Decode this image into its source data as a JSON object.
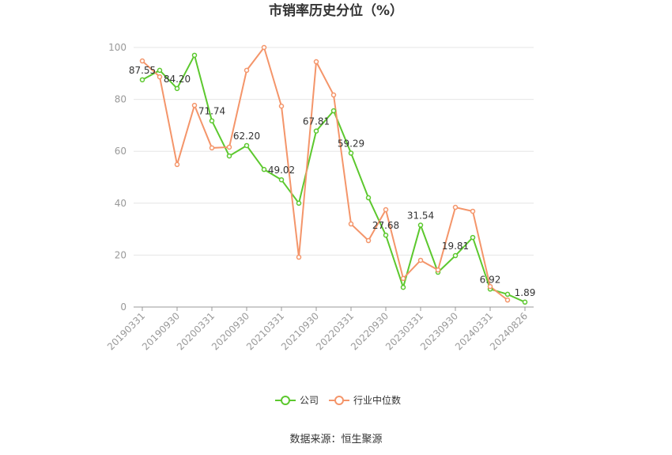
{
  "chart_data": {
    "type": "line",
    "title": "市销率历史分位（%）",
    "categories": [
      "20190331",
      null,
      "20190930",
      null,
      "20200331",
      null,
      "20200930",
      null,
      "20210331",
      null,
      "20210930",
      null,
      "20220331",
      null,
      "20220930",
      null,
      "20230331",
      null,
      "20230930",
      null,
      "20240331",
      null,
      "20240826"
    ],
    "series": [
      {
        "name": "公司",
        "color": "#5cc82e",
        "values": [
          87.55,
          91.2,
          84.2,
          97.0,
          71.74,
          58.2,
          62.2,
          53.0,
          49.02,
          40.0,
          67.81,
          75.6,
          59.29,
          42.1,
          27.68,
          7.6,
          31.54,
          13.4,
          19.81,
          26.8,
          6.92,
          4.9,
          1.89
        ],
        "value_labels": [
          "87.55",
          null,
          "84.20",
          null,
          "71.74",
          null,
          "62.20",
          null,
          "49.02",
          null,
          "67.81",
          null,
          "59.29",
          null,
          "27.68",
          null,
          "31.54",
          null,
          "19.81",
          null,
          "6.92",
          null,
          "1.89"
        ]
      },
      {
        "name": "行业中位数",
        "color": "#f4956a",
        "values": [
          94.8,
          88.7,
          54.9,
          77.7,
          61.3,
          61.6,
          91.2,
          100,
          77.4,
          19.2,
          94.5,
          81.7,
          32.0,
          25.6,
          37.5,
          11.0,
          18.0,
          14.3,
          38.4,
          36.9,
          7.9,
          2.7,
          null
        ]
      }
    ],
    "ylim": [
      0,
      100
    ],
    "yticks": [
      0,
      20,
      40,
      60,
      80,
      100
    ],
    "grid": true,
    "legend": "bottom",
    "source": "数据来源：恒生聚源"
  }
}
